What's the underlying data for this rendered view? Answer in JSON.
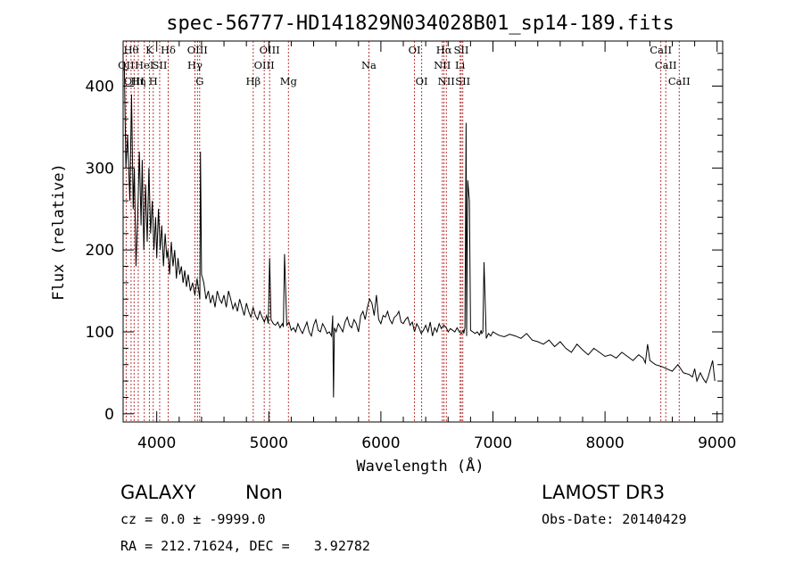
{
  "chart_data": {
    "type": "line",
    "title": "spec-56777-HD141829N034028B01_sp14-189.fits",
    "xlabel": "Wavelength (Å)",
    "ylabel": "Flux (relative)",
    "xlim": [
      3700,
      9050
    ],
    "ylim": [
      -10,
      455
    ],
    "x_ticks": [
      4000,
      5000,
      6000,
      7000,
      8000,
      9000
    ],
    "y_ticks": [
      0,
      100,
      200,
      300,
      400
    ],
    "line_color": "#000000",
    "marker_color": "#b22222",
    "series": [
      {
        "x": [
          3710,
          3725,
          3740,
          3760,
          3775,
          3790,
          3800,
          3815,
          3830,
          3845,
          3860,
          3870,
          3885,
          3900,
          3915,
          3930,
          3945,
          3960,
          3975,
          3990,
          4000,
          4015,
          4030,
          4045,
          4060,
          4075,
          4090,
          4100,
          4115,
          4130,
          4145,
          4160,
          4175,
          4190,
          4205,
          4220,
          4235,
          4250,
          4265,
          4280,
          4300,
          4320,
          4340,
          4360,
          4375,
          4385,
          4390,
          4400,
          4420,
          4440,
          4460,
          4480,
          4500,
          4520,
          4540,
          4560,
          4580,
          4600,
          4620,
          4640,
          4660,
          4680,
          4700,
          4720,
          4740,
          4760,
          4780,
          4800,
          4820,
          4840,
          4860,
          4880,
          4900,
          4920,
          4940,
          4960,
          4980,
          4995,
          5007,
          5020,
          5040,
          5060,
          5080,
          5100,
          5120,
          5130,
          5140,
          5160,
          5180,
          5200,
          5220,
          5240,
          5260,
          5280,
          5300,
          5320,
          5340,
          5360,
          5380,
          5400,
          5420,
          5440,
          5460,
          5480,
          5500,
          5520,
          5540,
          5560,
          5570,
          5577,
          5585,
          5600,
          5620,
          5640,
          5660,
          5680,
          5700,
          5720,
          5740,
          5760,
          5780,
          5800,
          5820,
          5840,
          5860,
          5880,
          5900,
          5920,
          5940,
          5960,
          5980,
          6000,
          6020,
          6040,
          6060,
          6080,
          6100,
          6120,
          6140,
          6160,
          6180,
          6200,
          6220,
          6240,
          6260,
          6280,
          6300,
          6320,
          6340,
          6360,
          6380,
          6400,
          6420,
          6440,
          6460,
          6480,
          6500,
          6520,
          6540,
          6560,
          6580,
          6600,
          6620,
          6640,
          6660,
          6680,
          6700,
          6720,
          6735,
          6740,
          6750,
          6760,
          6765,
          6775,
          6790,
          6800,
          6820,
          6840,
          6860,
          6880,
          6895,
          6900,
          6910,
          6920,
          6940,
          6960,
          6980,
          7000,
          7050,
          7100,
          7150,
          7200,
          7250,
          7300,
          7350,
          7400,
          7450,
          7500,
          7550,
          7600,
          7650,
          7700,
          7750,
          7800,
          7850,
          7900,
          7950,
          8000,
          8050,
          8100,
          8150,
          8200,
          8250,
          8300,
          8340,
          8360,
          8380,
          8400,
          8450,
          8500,
          8550,
          8600,
          8650,
          8700,
          8750,
          8780,
          8800,
          8820,
          8850,
          8880,
          8900,
          8920,
          8940,
          8960,
          8980
        ],
        "y": [
          430,
          300,
          340,
          260,
          390,
          250,
          300,
          180,
          240,
          320,
          230,
          310,
          200,
          280,
          210,
          300,
          220,
          260,
          200,
          240,
          190,
          250,
          200,
          230,
          180,
          220,
          190,
          200,
          170,
          210,
          180,
          200,
          165,
          190,
          170,
          180,
          160,
          175,
          155,
          170,
          150,
          160,
          145,
          165,
          150,
          140,
          320,
          170,
          160,
          140,
          150,
          135,
          145,
          130,
          150,
          140,
          135,
          145,
          130,
          150,
          140,
          128,
          135,
          125,
          140,
          130,
          120,
          135,
          125,
          118,
          130,
          120,
          115,
          125,
          118,
          112,
          120,
          110,
          190,
          115,
          110,
          108,
          112,
          105,
          110,
          106,
          195,
          108,
          112,
          102,
          105,
          100,
          110,
          103,
          98,
          105,
          112,
          100,
          95,
          108,
          115,
          102,
          100,
          110,
          105,
          98,
          100,
          95,
          120,
          20,
          105,
          100,
          110,
          105,
          100,
          112,
          118,
          108,
          105,
          115,
          110,
          100,
          120,
          125,
          115,
          130,
          140,
          135,
          120,
          145,
          115,
          110,
          120,
          118,
          125,
          115,
          110,
          118,
          120,
          125,
          112,
          110,
          115,
          118,
          108,
          112,
          100,
          110,
          105,
          98,
          102,
          108,
          100,
          112,
          95,
          105,
          100,
          110,
          104,
          108,
          106,
          100,
          104,
          102,
          100,
          105,
          100,
          98,
          102,
          98,
          105,
          355,
          95,
          285,
          260,
          102,
          100,
          98,
          100,
          96,
          102,
          98,
          100,
          185,
          92,
          98,
          95,
          100,
          96,
          94,
          97,
          95,
          92,
          98,
          90,
          88,
          85,
          90,
          82,
          88,
          80,
          75,
          85,
          78,
          72,
          80,
          75,
          70,
          72,
          68,
          75,
          70,
          65,
          72,
          68,
          62,
          85,
          65,
          60,
          58,
          55,
          52,
          60,
          50,
          48,
          45,
          55,
          40,
          50,
          42,
          38,
          45,
          55,
          65,
          40
        ]
      }
    ],
    "emission_lines": [
      {
        "x": 3727,
        "label": "OII",
        "row": 1
      },
      {
        "x": 3771,
        "label": "Hθ",
        "row": 0
      },
      {
        "x": 3798,
        "label": "OIII",
        "row": 2
      },
      {
        "x": 3835,
        "label": "Hη",
        "row": 2
      },
      {
        "x": 3889,
        "label": "HeI",
        "row": 1
      },
      {
        "x": 3934,
        "label": "K",
        "row": 0
      },
      {
        "x": 3969,
        "label": "H",
        "row": 2
      },
      {
        "x": 4026,
        "label": "SII",
        "row": 1
      },
      {
        "x": 4102,
        "label": "Hδ",
        "row": 0
      },
      {
        "x": 4341,
        "label": "Hγ",
        "row": 1
      },
      {
        "x": 4363,
        "label": "OIII",
        "row": 0
      },
      {
        "x": 4383,
        "label": "G",
        "row": 2
      },
      {
        "x": 4861,
        "label": "Hβ",
        "row": 2
      },
      {
        "x": 4959,
        "label": "OIII",
        "row": 1
      },
      {
        "x": 5007,
        "label": "OIII",
        "row": 0
      },
      {
        "x": 5175,
        "label": "Mg",
        "row": 2
      },
      {
        "x": 5893,
        "label": "Na",
        "row": 1
      },
      {
        "x": 6300,
        "label": "OI",
        "row": 0
      },
      {
        "x": 6364,
        "label": "OI",
        "row": 2
      },
      {
        "x": 6548,
        "label": "NII",
        "row": 1
      },
      {
        "x": 6563,
        "label": "Hα",
        "row": 0
      },
      {
        "x": 6584,
        "label": "NII",
        "row": 2
      },
      {
        "x": 6707,
        "label": "Li",
        "row": 1
      },
      {
        "x": 6717,
        "label": "SII",
        "row": 0
      },
      {
        "x": 6731,
        "label": "SII",
        "row": 2
      },
      {
        "x": 8498,
        "label": "CaII",
        "row": 0
      },
      {
        "x": 8542,
        "label": "CaII",
        "row": 1
      },
      {
        "x": 8662,
        "label": "CaII",
        "row": 2
      }
    ]
  },
  "info": {
    "class": "GALAXY",
    "subclass": "Non",
    "survey": "LAMOST DR3",
    "cz": "cz = 0.0 ± -9999.0",
    "obs_date": "Obs-Date: 20140429",
    "radec": "RA = 212.71624, DEC =   3.92782"
  }
}
